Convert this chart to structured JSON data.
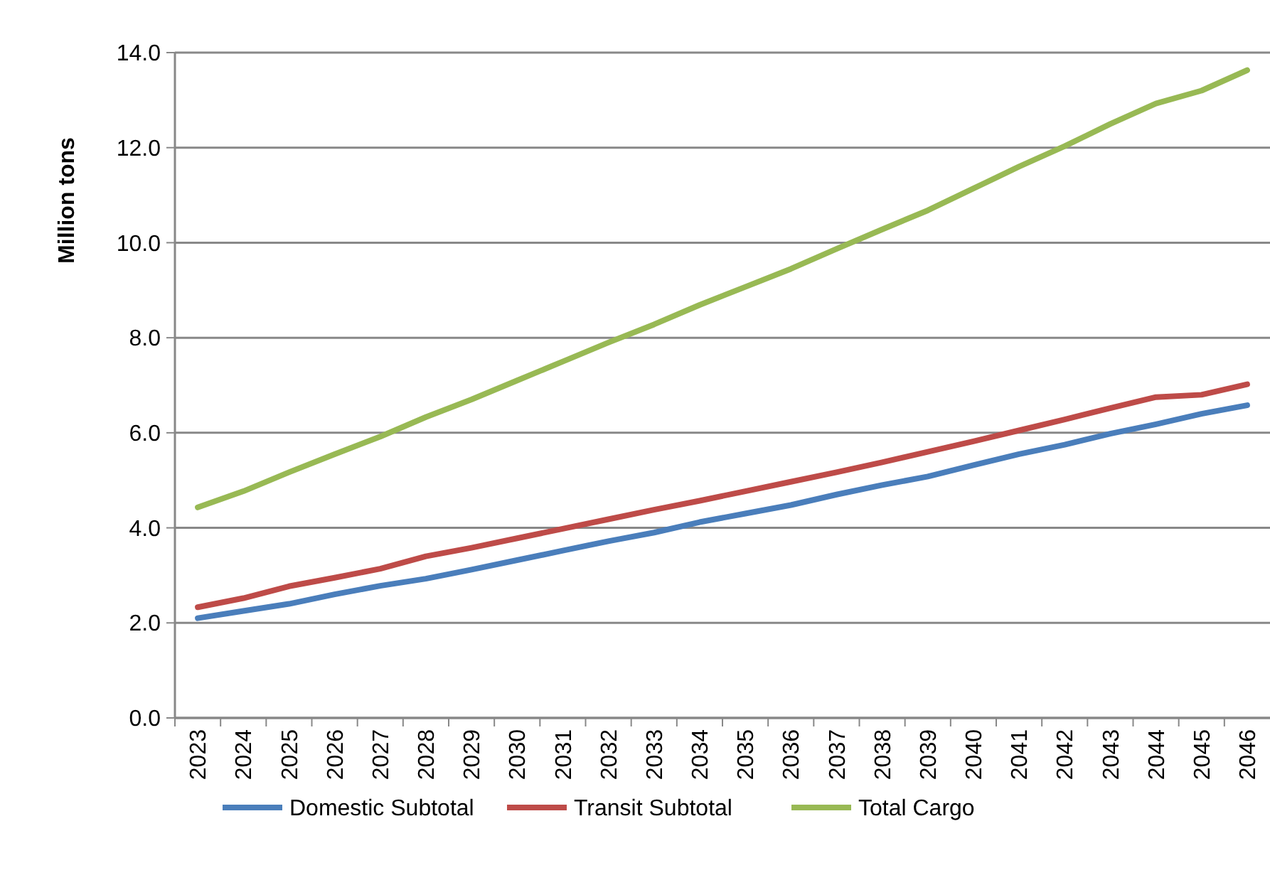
{
  "chart_data": {
    "type": "line",
    "ylabel": "Million tons",
    "categories": [
      "2023",
      "2024",
      "2025",
      "2026",
      "2027",
      "2028",
      "2029",
      "2030",
      "2031",
      "2032",
      "2033",
      "2034",
      "2035",
      "2036",
      "2037",
      "2038",
      "2039",
      "2040",
      "2041",
      "2042",
      "2043",
      "2044",
      "2045",
      "2046"
    ],
    "series": [
      {
        "name": "Domestic Subtotal",
        "color": "#4a7ebb",
        "values": [
          2.1,
          2.25,
          2.4,
          2.6,
          2.78,
          2.93,
          3.12,
          3.32,
          3.52,
          3.72,
          3.9,
          4.12,
          4.3,
          4.48,
          4.7,
          4.9,
          5.08,
          5.32,
          5.55,
          5.75,
          5.98,
          6.18,
          6.4,
          6.58
        ]
      },
      {
        "name": "Transit Subtotal",
        "color": "#be4b48",
        "values": [
          2.33,
          2.52,
          2.77,
          2.95,
          3.14,
          3.4,
          3.58,
          3.78,
          3.98,
          4.18,
          4.38,
          4.57,
          4.77,
          4.97,
          5.17,
          5.38,
          5.6,
          5.82,
          6.05,
          6.28,
          6.52,
          6.75,
          6.8,
          7.02
        ]
      },
      {
        "name": "Total Cargo",
        "color": "#98b954",
        "values": [
          4.43,
          4.77,
          5.17,
          5.55,
          5.92,
          6.33,
          6.7,
          7.1,
          7.5,
          7.9,
          8.28,
          8.69,
          9.07,
          9.45,
          9.87,
          10.28,
          10.68,
          11.14,
          11.6,
          12.03,
          12.5,
          12.93,
          13.2,
          13.63
        ]
      }
    ],
    "ylim": [
      0,
      14
    ],
    "yticks": [
      {
        "value": 0,
        "label": "0.0"
      },
      {
        "value": 2,
        "label": "2.0"
      },
      {
        "value": 4,
        "label": "4.0"
      },
      {
        "value": 6,
        "label": "6.0"
      },
      {
        "value": 8,
        "label": "8.0"
      },
      {
        "value": 10,
        "label": "10.0"
      },
      {
        "value": 12,
        "label": "12.0"
      },
      {
        "value": 14,
        "label": "14.0"
      }
    ],
    "grid": "y",
    "legend": "bottom",
    "marker": "none",
    "line_style": "solid"
  }
}
